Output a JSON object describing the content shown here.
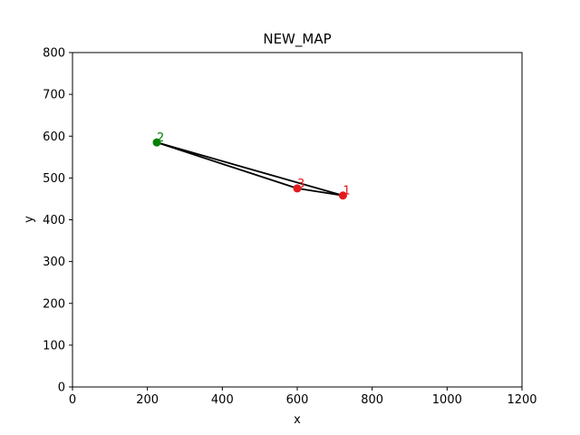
{
  "chart_data": {
    "type": "scatter",
    "title": "NEW_MAP",
    "xlabel": "x",
    "ylabel": "y",
    "xlim": [
      0,
      1200
    ],
    "ylim": [
      0,
      800
    ],
    "xticks": [
      "0",
      "200",
      "400",
      "600",
      "800",
      "1000",
      "1200"
    ],
    "yticks": [
      "0",
      "100",
      "200",
      "300",
      "400",
      "500",
      "600",
      "700",
      "800"
    ],
    "grid": false,
    "points": [
      {
        "label": "2",
        "x": 225,
        "y": 585,
        "color": "#008000"
      },
      {
        "label": "1",
        "x": 722,
        "y": 458,
        "color": "#e41a1c"
      },
      {
        "label": "3",
        "x": 600,
        "y": 475,
        "color": "#e41a1c"
      }
    ],
    "path": [
      {
        "x": 225,
        "y": 585
      },
      {
        "x": 722,
        "y": 458
      },
      {
        "x": 600,
        "y": 475
      },
      {
        "x": 225,
        "y": 585
      }
    ],
    "path_color": "#000000"
  }
}
